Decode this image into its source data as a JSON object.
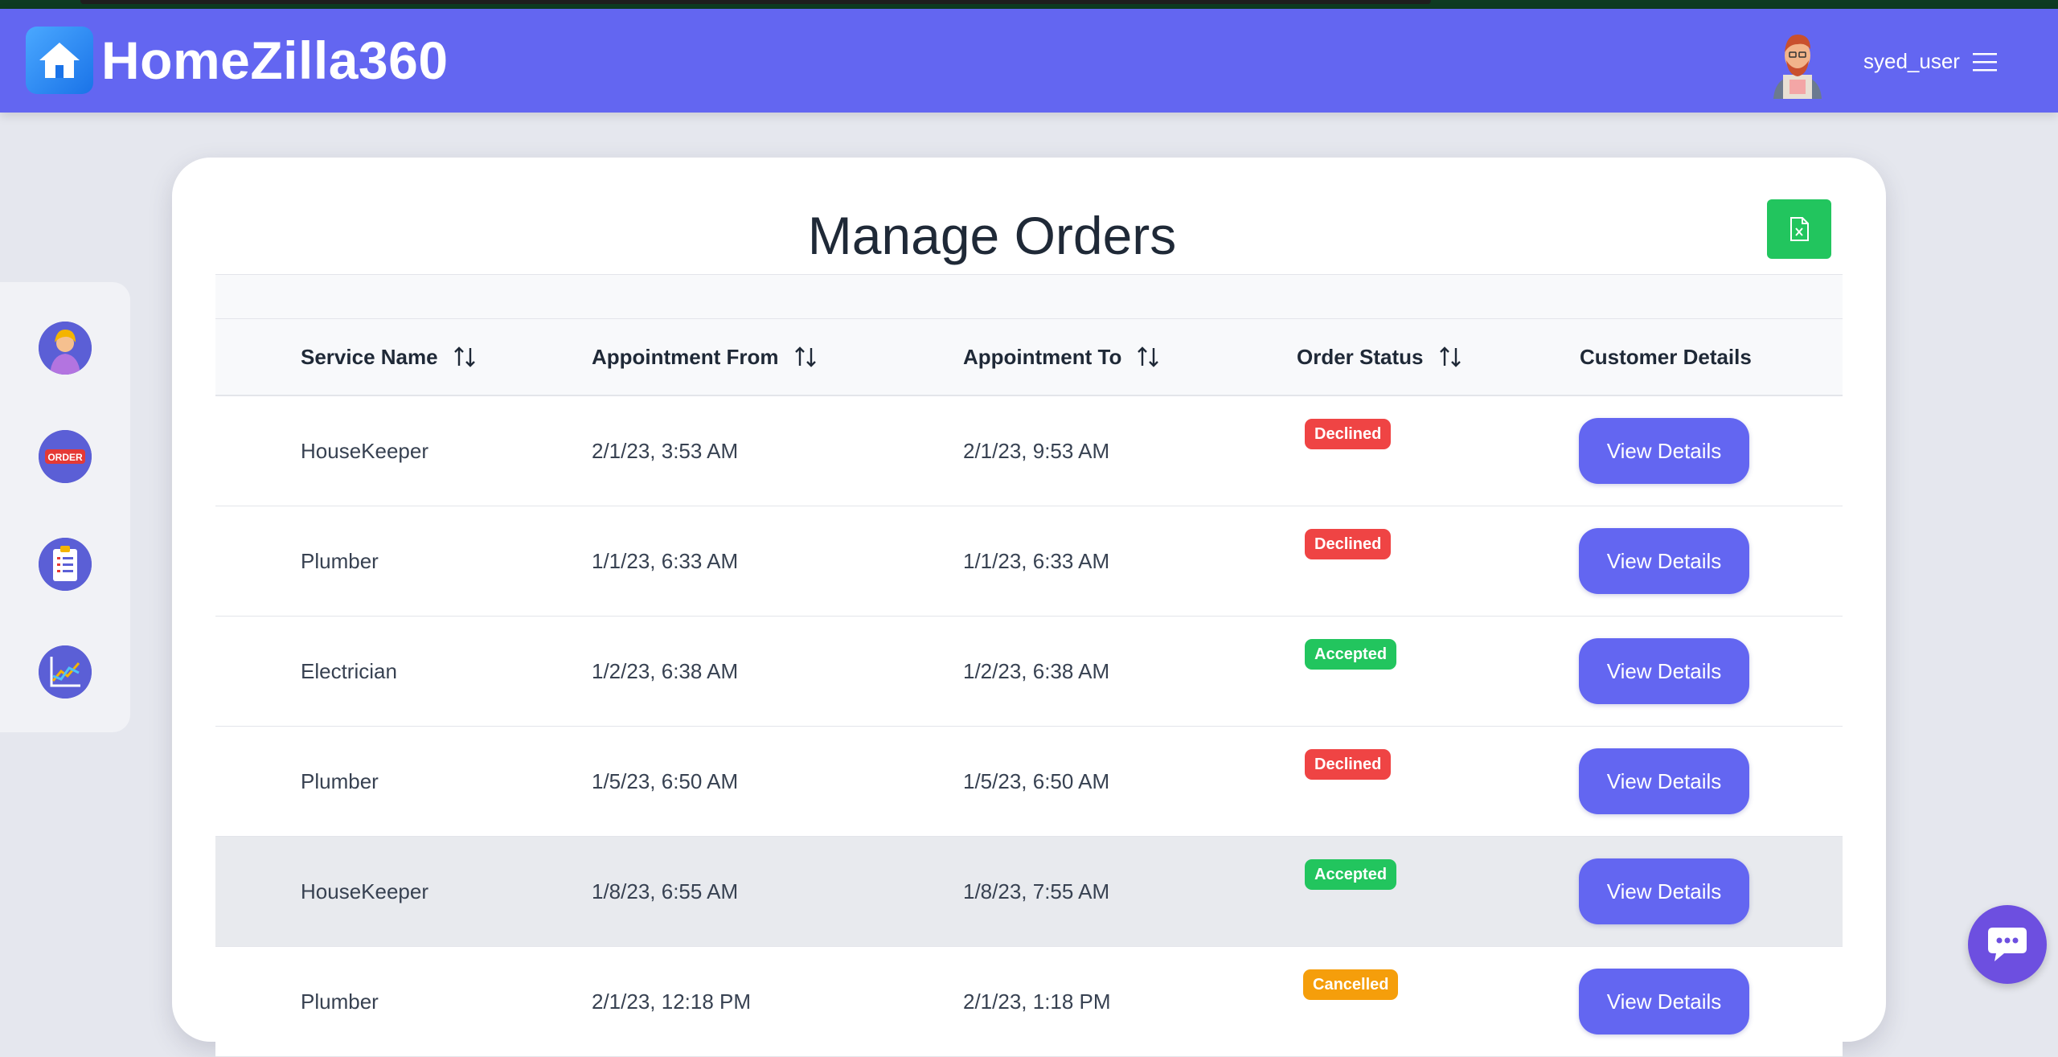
{
  "app": {
    "brand": "HomeZilla360",
    "username": "syed_user"
  },
  "colors": {
    "header": "#6366f1",
    "primary_button": "#6366f1",
    "excel_button": "#22c55e",
    "declined": "#ef4444",
    "accepted": "#22c55e",
    "cancelled": "#f59e0b"
  },
  "sidebar": {
    "items": [
      {
        "icon": "profile-icon"
      },
      {
        "icon": "order-icon",
        "text": "ORDER"
      },
      {
        "icon": "clipboard-icon"
      },
      {
        "icon": "chart-icon"
      }
    ]
  },
  "page": {
    "title": "Manage Orders",
    "export_icon": "excel-file-icon"
  },
  "table": {
    "headers": {
      "service_name": "Service Name",
      "appointment_from": "Appointment From",
      "appointment_to": "Appointment To",
      "order_status": "Order Status",
      "customer_details": "Customer Details"
    },
    "rows": [
      {
        "service": "HouseKeeper",
        "from": "2/1/23, 3:53 AM",
        "to": "2/1/23, 9:53 AM",
        "status": "Declined",
        "action": "View Details"
      },
      {
        "service": "Plumber",
        "from": "1/1/23, 6:33 AM",
        "to": "1/1/23, 6:33 AM",
        "status": "Declined",
        "action": "View Details"
      },
      {
        "service": "Electrician",
        "from": "1/2/23, 6:38 AM",
        "to": "1/2/23, 6:38 AM",
        "status": "Accepted",
        "action": "View Details"
      },
      {
        "service": "Plumber",
        "from": "1/5/23, 6:50 AM",
        "to": "1/5/23, 6:50 AM",
        "status": "Declined",
        "action": "View Details"
      },
      {
        "service": "HouseKeeper",
        "from": "1/8/23, 6:55 AM",
        "to": "1/8/23, 7:55 AM",
        "status": "Accepted",
        "action": "View Details"
      },
      {
        "service": "Plumber",
        "from": "2/1/23, 12:18 PM",
        "to": "2/1/23, 1:18 PM",
        "status": "Cancelled",
        "action": "View Details"
      }
    ]
  },
  "chat": {
    "icon": "chat-icon"
  }
}
